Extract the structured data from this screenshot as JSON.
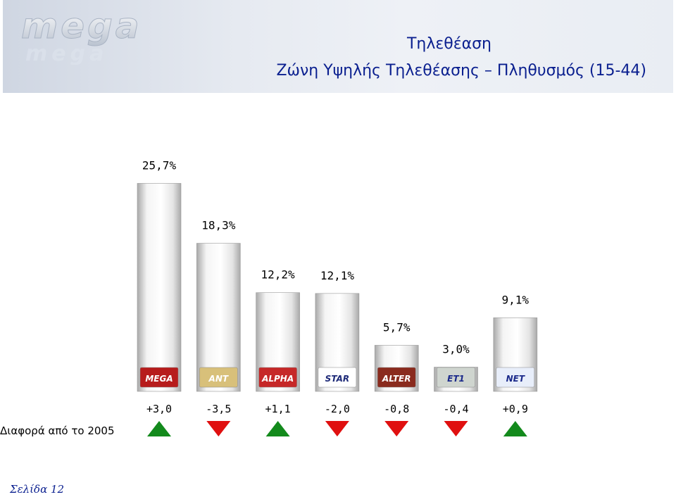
{
  "header": {
    "logo_text": "mega",
    "title_line1": "Τηλεθέαση",
    "title_line2": "Ζώνη Υψηλής Τηλεθέασης – Πληθυσμός (15-44)"
  },
  "chart_data": {
    "type": "bar",
    "title": "",
    "categories": [
      "MEGA",
      "ANT1",
      "ALPHA",
      "STAR",
      "ALTER",
      "ET1",
      "NET"
    ],
    "values": [
      25.7,
      18.3,
      12.2,
      12.1,
      5.7,
      3.0,
      9.1
    ],
    "value_labels": [
      "25,7%",
      "18,3%",
      "12,2%",
      "12,1%",
      "5,7%",
      "3,0%",
      "9,1%"
    ],
    "channel_logos": [
      "MEGA",
      "ANT",
      "ALPHA",
      "STAR",
      "ALTER",
      "ET1",
      "NET"
    ],
    "diffs": [
      3.0,
      -3.5,
      1.1,
      -2.0,
      -0.8,
      -0.4,
      0.9
    ],
    "diff_labels": [
      "+3,0",
      "-3,5",
      "+1,1",
      "-2,0",
      "-0,8",
      "-0,4",
      "+0,9"
    ],
    "ylim": [
      0,
      30
    ],
    "grid": false,
    "colors": {
      "bar_light": "#f4f4f4",
      "bar_dark": "#a9a9a9",
      "up": "#138a1c",
      "down": "#e01010"
    }
  },
  "footer": {
    "diff_caption": "Διαφορά από το 2005",
    "page_label": "Σελίδα 12"
  }
}
